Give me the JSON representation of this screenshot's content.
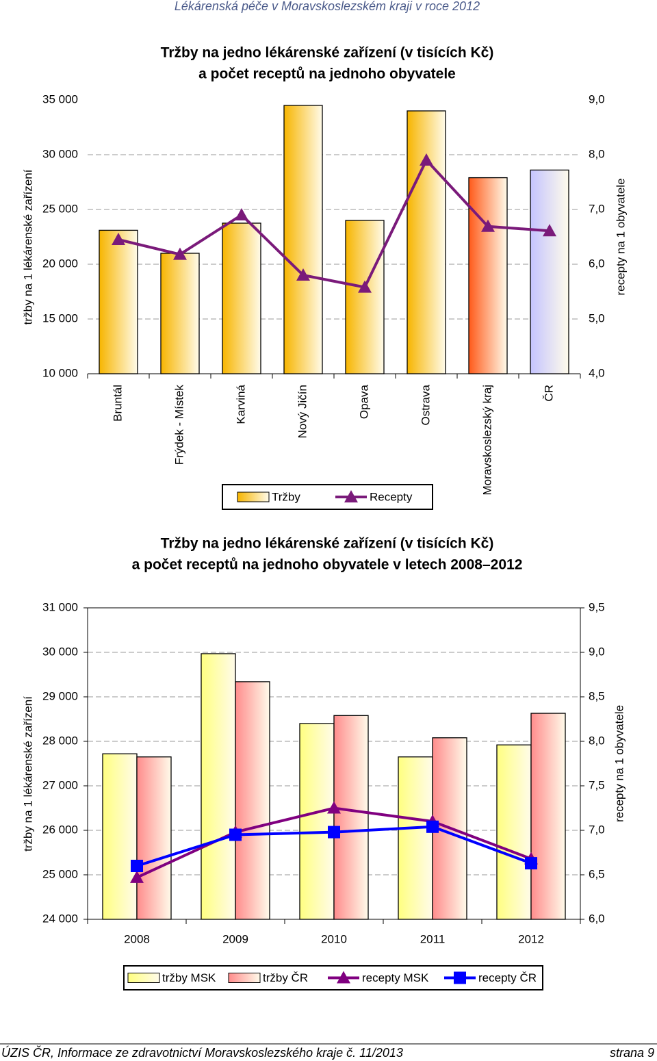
{
  "header": "Lékárenská péče v Moravskoslezském kraji v roce 2012",
  "chart_data": [
    {
      "type": "bar",
      "title": [
        "Tržby na jedno lékárenské zařízení (v tisících Kč)",
        "a počet receptů na jednoho obyvatele"
      ],
      "y_label": "tržby na 1 lékárenské zařízení",
      "y2_label": "recepty na 1 obyvatele",
      "categories": [
        "Bruntál",
        "Frýdek - Místek",
        "Karviná",
        "Nový Jičín",
        "Opava",
        "Ostrava",
        "Moravskoslezský kraj",
        "ČR"
      ],
      "series": [
        {
          "name": "Tržby",
          "type": "bar",
          "color": "#f7b500",
          "colors": [
            "#f7b500",
            "#f7b500",
            "#f7b500",
            "#f7b500",
            "#f7b500",
            "#f7b500",
            "#ff5a1a",
            "#c4c4ff"
          ],
          "values": [
            23100,
            21000,
            23750,
            34500,
            24000,
            34000,
            27900,
            28600
          ]
        },
        {
          "name": "Recepty",
          "type": "line",
          "marker": "triangle",
          "color": "#7a1a7a",
          "axis": "y2",
          "values": [
            6.45,
            6.18,
            6.9,
            5.8,
            5.58,
            7.9,
            6.69,
            6.61
          ]
        }
      ],
      "ylim": [
        10000,
        35000
      ],
      "yticks": [
        {
          "value": 10000,
          "label": "10 000"
        },
        {
          "value": 15000,
          "label": "15 000"
        },
        {
          "value": 20000,
          "label": "20 000"
        },
        {
          "value": 25000,
          "label": "25 000"
        },
        {
          "value": 30000,
          "label": "30 000"
        },
        {
          "value": 35000,
          "label": "35 000"
        }
      ],
      "y2lim": [
        4,
        9
      ],
      "y2ticks": [
        {
          "value": 4,
          "label": "4,0"
        },
        {
          "value": 5,
          "label": "5,0"
        },
        {
          "value": 6,
          "label": "6,0"
        },
        {
          "value": 7,
          "label": "7,0"
        },
        {
          "value": 8,
          "label": "8,0"
        },
        {
          "value": 9,
          "label": "9,0"
        }
      ],
      "grid": true
    },
    {
      "type": "bar",
      "title": [
        "Tržby na jedno lékárenské zařízení (v tisících Kč)",
        "a počet receptů na jednoho obyvatele v letech 2008–2012"
      ],
      "y_label": "tržby na 1 lékárenské zařízení",
      "y2_label": "recepty na 1 obyvatele",
      "categories": [
        "2008",
        "2009",
        "2010",
        "2011",
        "2012"
      ],
      "series": [
        {
          "name": "tržby MSK",
          "type": "bar",
          "color": "#ffff80",
          "values": [
            27720,
            29970,
            28400,
            27650,
            27920
          ]
        },
        {
          "name": "tržby ČR",
          "type": "bar",
          "color": "#ff8c8c",
          "values": [
            27650,
            29340,
            28580,
            28080,
            28630
          ]
        },
        {
          "name": "recepty MSK",
          "type": "line",
          "marker": "triangle",
          "color": "#800080",
          "axis": "y2",
          "values": [
            6.47,
            6.98,
            7.25,
            7.1,
            6.68
          ]
        },
        {
          "name": "recepty ČR",
          "type": "line",
          "marker": "square",
          "color": "#0000ff",
          "axis": "y2",
          "values": [
            6.6,
            6.95,
            6.98,
            7.04,
            6.63
          ]
        }
      ],
      "ylim": [
        24000,
        31000
      ],
      "yticks": [
        {
          "value": 24000,
          "label": "24 000"
        },
        {
          "value": 25000,
          "label": "25 000"
        },
        {
          "value": 26000,
          "label": "26 000"
        },
        {
          "value": 27000,
          "label": "27 000"
        },
        {
          "value": 28000,
          "label": "28 000"
        },
        {
          "value": 29000,
          "label": "29 000"
        },
        {
          "value": 30000,
          "label": "30 000"
        },
        {
          "value": 31000,
          "label": "31 000"
        }
      ],
      "y2lim": [
        6,
        9.5
      ],
      "y2ticks": [
        {
          "value": 6,
          "label": "6,0"
        },
        {
          "value": 6.5,
          "label": "6,5"
        },
        {
          "value": 7,
          "label": "7,0"
        },
        {
          "value": 7.5,
          "label": "7,5"
        },
        {
          "value": 8,
          "label": "8,0"
        },
        {
          "value": 8.5,
          "label": "8,5"
        },
        {
          "value": 9,
          "label": "9,0"
        },
        {
          "value": 9.5,
          "label": "9,5"
        }
      ],
      "grid": true
    }
  ],
  "footer": {
    "source": "ÚZIS ČR, Informace ze zdravotnictví Moravskoslezského kraje č. 11/2013",
    "page": "strana 9"
  }
}
